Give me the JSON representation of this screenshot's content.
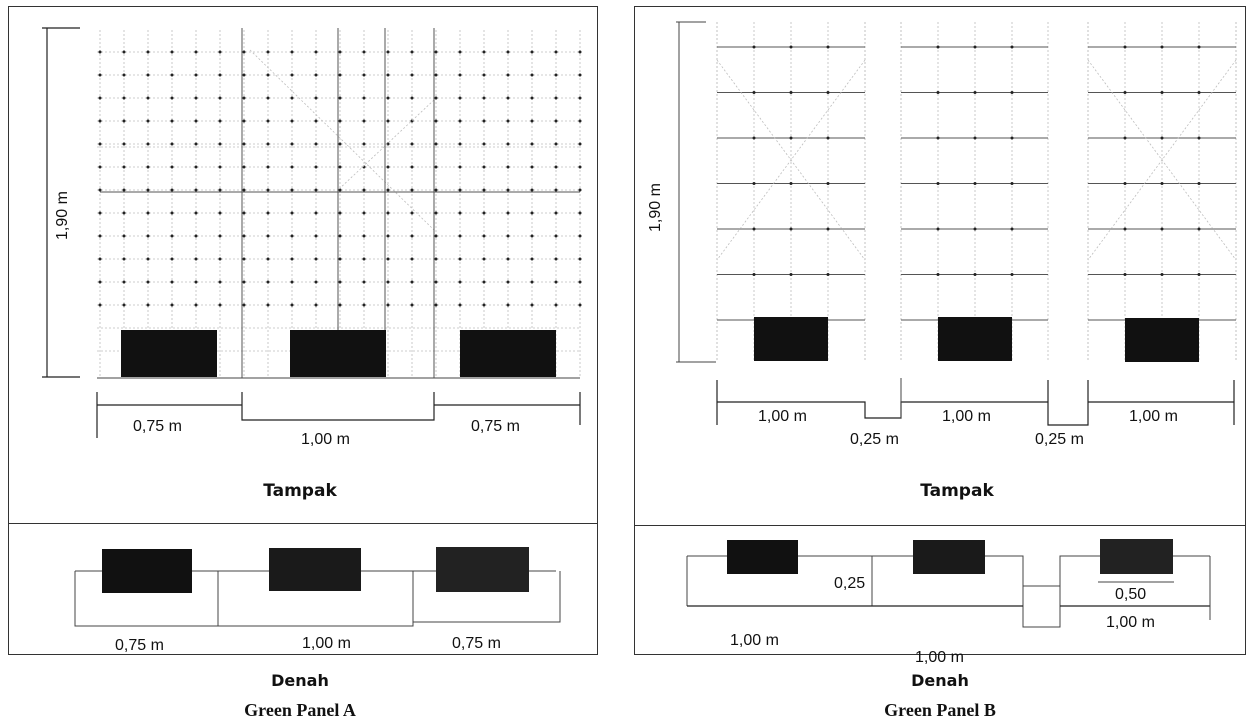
{
  "panel_a": {
    "height_label": "1,90 m",
    "tampak_widths": [
      "0,75 m",
      "1,00 m",
      "0,75 m"
    ],
    "tampak_heading": "Tampak",
    "denah_widths": [
      "0,75 m",
      "1,00 m",
      "0,75 m"
    ],
    "denah_heading": "Denah",
    "caption": "Green Panel A"
  },
  "panel_b": {
    "height_label": "1,90 m",
    "tampak_widths": [
      "1,00 m",
      "1,00 m",
      "1,00 m"
    ],
    "tampak_gaps": [
      "0,25 m",
      "0,25 m"
    ],
    "tampak_heading": "Tampak",
    "denah_gap": "0,25",
    "denah_depth": "0,50",
    "denah_widths": [
      "1,00 m",
      "1,00 m",
      "1,00 m"
    ],
    "denah_heading": "Denah",
    "caption": "Green Panel B"
  }
}
